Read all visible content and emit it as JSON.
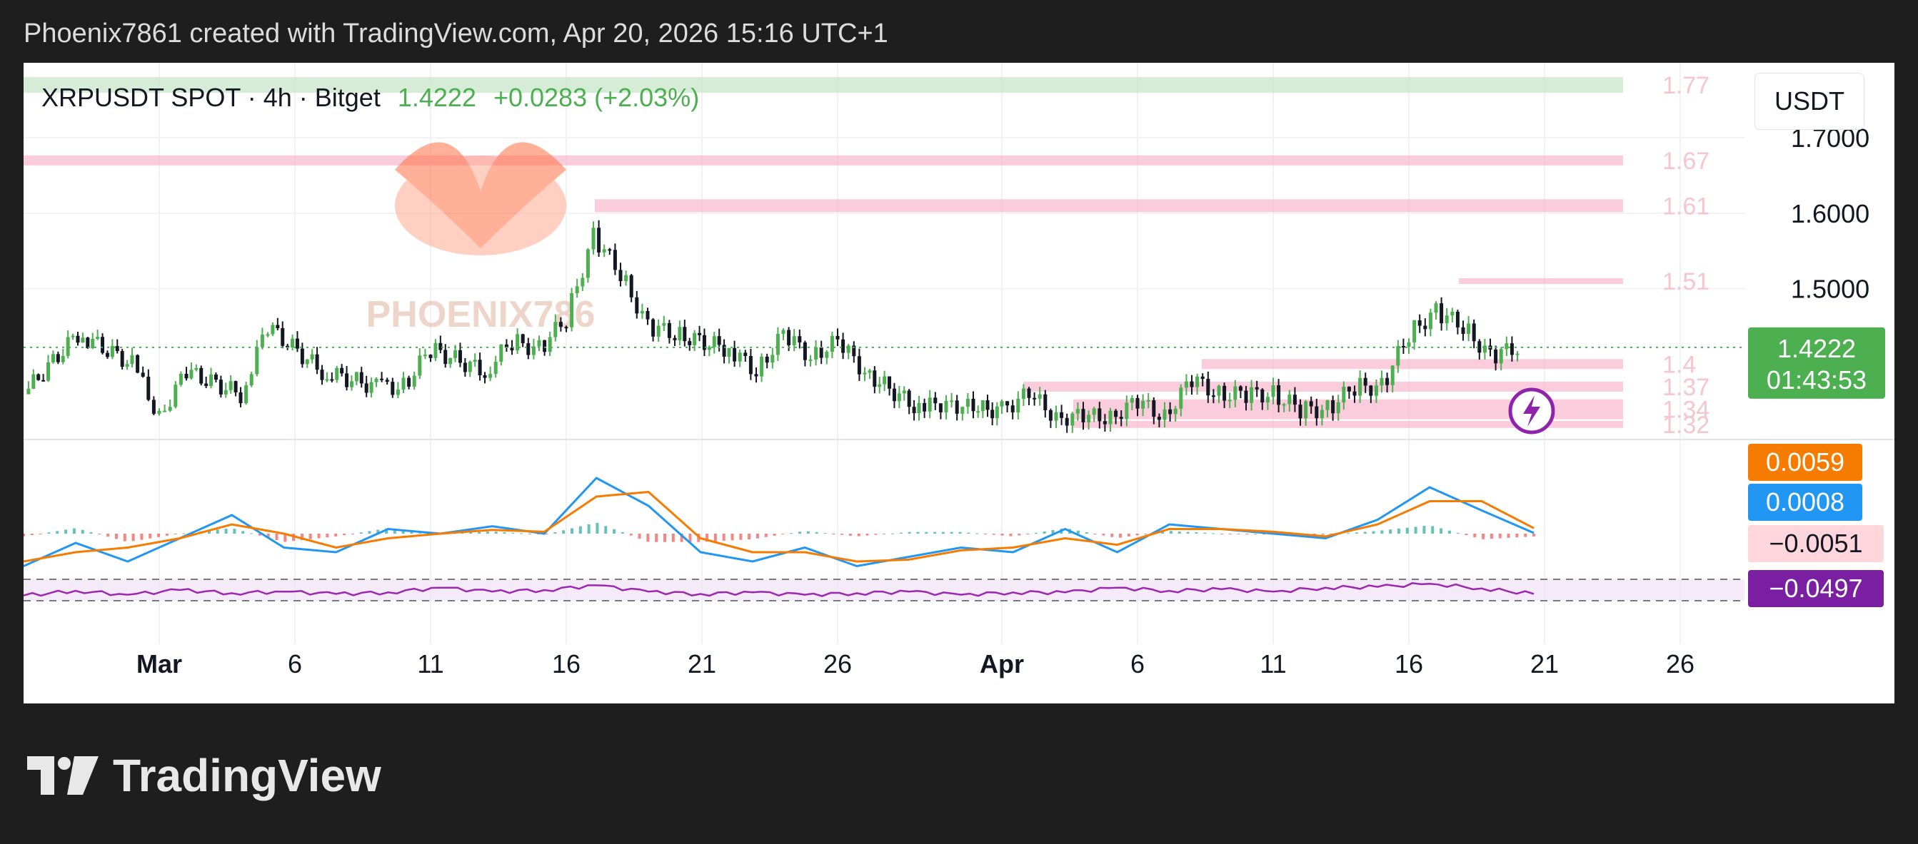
{
  "header": {
    "caption": "Phoenix7861 created with TradingView.com, Apr 20, 2026 15:16 UTC+1"
  },
  "legend": {
    "symbol": "XRPUSDT SPOT · 4h · Bitget",
    "price": "1.4222",
    "change": "+0.0283 (+2.03%)"
  },
  "currency": "USDT",
  "watermark": "PHOENIX786",
  "footer": {
    "brand": "TradingView",
    "logo_icon": "tradingview-logo-icon"
  },
  "alert_icon": "lightning-icon",
  "colors": {
    "up": "#26a69a",
    "up_green": "#4caf50",
    "down": "#ef5350",
    "macd_line": "#2196f3",
    "signal_line": "#f57c00",
    "rsi_line": "#9c27b0",
    "price_tag_bg": "#4caf50",
    "zone_red": "#f8bbd0",
    "zone_green": "#c8e6c9"
  },
  "chart_data": {
    "type": "candlestick",
    "symbol": "XRPUSDT",
    "timeframe": "4h",
    "exchange": "Bitget",
    "ylim": [
      1.3,
      1.79
    ],
    "y_ticks": [
      "1.7000",
      "1.6000",
      "1.5000"
    ],
    "x_ticks": [
      "Mar",
      "6",
      "11",
      "16",
      "21",
      "26",
      "Apr",
      "6",
      "11",
      "16",
      "21",
      "26"
    ],
    "last_price": "1.4222",
    "countdown": "01:43:53",
    "zone_labels": [
      "1.77",
      "1.67",
      "1.61",
      "1.51",
      "1.4",
      "1.37",
      "1.34",
      "1.32"
    ],
    "zones": [
      {
        "label": "1.77",
        "level": 1.77,
        "color": "green"
      },
      {
        "label": "1.67",
        "level": 1.67,
        "color": "red"
      },
      {
        "label": "1.61",
        "level": 1.61,
        "color": "red"
      },
      {
        "label": "1.51",
        "level": 1.51,
        "color": "red"
      },
      {
        "label": "1.4",
        "level": 1.4,
        "color": "red"
      },
      {
        "label": "1.37",
        "level": 1.37,
        "color": "red"
      },
      {
        "label": "1.34",
        "level": 1.34,
        "color": "red"
      },
      {
        "label": "1.32",
        "level": 1.32,
        "color": "red"
      }
    ],
    "close_series": [
      {
        "date": "Feb 24",
        "close": 1.36
      },
      {
        "date": "Feb 26",
        "close": 1.44
      },
      {
        "date": "Feb 28",
        "close": 1.4
      },
      {
        "date": "Mar 1",
        "close": 1.33
      },
      {
        "date": "Mar 2",
        "close": 1.39
      },
      {
        "date": "Mar 4",
        "close": 1.36
      },
      {
        "date": "Mar 5",
        "close": 1.45
      },
      {
        "date": "Mar 7",
        "close": 1.39
      },
      {
        "date": "Mar 9",
        "close": 1.37
      },
      {
        "date": "Mar 10",
        "close": 1.37
      },
      {
        "date": "Mar 11",
        "close": 1.42
      },
      {
        "date": "Mar 13",
        "close": 1.39
      },
      {
        "date": "Mar 14",
        "close": 1.43
      },
      {
        "date": "Mar 15",
        "close": 1.42
      },
      {
        "date": "Mar 16",
        "close": 1.46
      },
      {
        "date": "Mar 17",
        "close": 1.57
      },
      {
        "date": "Mar 18",
        "close": 1.52
      },
      {
        "date": "Mar 19",
        "close": 1.45
      },
      {
        "date": "Mar 20",
        "close": 1.44
      },
      {
        "date": "Mar 22",
        "close": 1.42
      },
      {
        "date": "Mar 23",
        "close": 1.39
      },
      {
        "date": "Mar 24",
        "close": 1.44
      },
      {
        "date": "Mar 25",
        "close": 1.41
      },
      {
        "date": "Mar 26",
        "close": 1.43
      },
      {
        "date": "Mar 27",
        "close": 1.39
      },
      {
        "date": "Mar 29",
        "close": 1.34
      },
      {
        "date": "Mar 30",
        "close": 1.35
      },
      {
        "date": "Mar 31",
        "close": 1.34
      },
      {
        "date": "Apr 1",
        "close": 1.34
      },
      {
        "date": "Apr 2",
        "close": 1.36
      },
      {
        "date": "Apr 3",
        "close": 1.33
      },
      {
        "date": "Apr 4",
        "close": 1.33
      },
      {
        "date": "Apr 5",
        "close": 1.33
      },
      {
        "date": "Apr 6",
        "close": 1.35
      },
      {
        "date": "Apr 7",
        "close": 1.33
      },
      {
        "date": "Apr 8",
        "close": 1.38
      },
      {
        "date": "Apr 9",
        "close": 1.36
      },
      {
        "date": "Apr 10",
        "close": 1.36
      },
      {
        "date": "Apr 11",
        "close": 1.36
      },
      {
        "date": "Apr 12",
        "close": 1.34
      },
      {
        "date": "Apr 13",
        "close": 1.34
      },
      {
        "date": "Apr 14",
        "close": 1.37
      },
      {
        "date": "Apr 15",
        "close": 1.37
      },
      {
        "date": "Apr 16",
        "close": 1.44
      },
      {
        "date": "Apr 17",
        "close": 1.47
      },
      {
        "date": "Apr 18",
        "close": 1.45
      },
      {
        "date": "Apr 19",
        "close": 1.41
      },
      {
        "date": "Apr 20",
        "close": 1.4222
      }
    ],
    "macd": {
      "macd_value": "0.0008",
      "signal_value": "0.0059",
      "histogram_value": "−0.0051",
      "macd_series": [
        -0.035,
        -0.01,
        -0.03,
        -0.005,
        0.02,
        -0.015,
        -0.02,
        0.005,
        0.0,
        0.008,
        0.0,
        0.06,
        0.03,
        -0.02,
        -0.03,
        -0.015,
        -0.035,
        -0.025,
        -0.015,
        -0.02,
        0.005,
        -0.02,
        0.01,
        0.005,
        0.0,
        -0.005,
        0.015,
        0.05,
        0.025,
        0.0008
      ],
      "signal_series": [
        -0.03,
        -0.02,
        -0.015,
        -0.005,
        0.01,
        0.0,
        -0.015,
        -0.005,
        0.0,
        0.004,
        0.002,
        0.04,
        0.045,
        -0.005,
        -0.02,
        -0.02,
        -0.03,
        -0.028,
        -0.018,
        -0.015,
        -0.005,
        -0.012,
        0.005,
        0.005,
        0.002,
        -0.003,
        0.01,
        0.035,
        0.035,
        0.0059
      ]
    },
    "rsi_like": {
      "value": "−0.0497",
      "band_upper": 0.1,
      "band_lower": -0.1,
      "series": [
        -0.07,
        -0.01,
        -0.06,
        0.0,
        -0.04,
        -0.02,
        -0.05,
        -0.03,
        0.03,
        -0.02,
        0.0,
        0.06,
        -0.02,
        -0.05,
        -0.03,
        -0.06,
        -0.04,
        -0.02,
        -0.06,
        -0.03,
        -0.03,
        0.03,
        -0.01,
        0.01,
        -0.02,
        0.03,
        0.04,
        0.08,
        0.02,
        -0.0497
      ]
    }
  }
}
